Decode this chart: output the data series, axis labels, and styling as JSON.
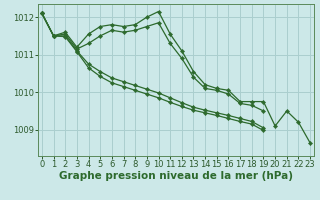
{
  "bg_color": "#cce8e8",
  "grid_color": "#aacece",
  "line_color": "#2d6a2d",
  "xlabel": "Graphe pression niveau de la mer (hPa)",
  "xlabel_fontsize": 7.5,
  "tick_fontsize": 6,
  "ylim": [
    1008.3,
    1012.35
  ],
  "xlim": [
    -0.3,
    23.3
  ],
  "yticks": [
    1009,
    1010,
    1011,
    1012
  ],
  "xticks": [
    0,
    1,
    2,
    3,
    4,
    5,
    6,
    7,
    8,
    9,
    10,
    11,
    12,
    13,
    14,
    15,
    16,
    17,
    18,
    19,
    20,
    21,
    22,
    23
  ],
  "series": [
    {
      "x": [
        0,
        1,
        2,
        3,
        4,
        5,
        6,
        7,
        8,
        9,
        10,
        11,
        12,
        13,
        14,
        15,
        16,
        17,
        18,
        19,
        20,
        21,
        22,
        23
      ],
      "y": [
        1012.1,
        1011.5,
        1011.6,
        1011.2,
        1011.55,
        1011.75,
        1011.8,
        1011.75,
        1011.8,
        1012.0,
        1012.15,
        1011.55,
        1011.1,
        1010.55,
        1010.2,
        1010.1,
        1010.05,
        1009.75,
        1009.75,
        1009.75,
        1009.1,
        1009.5,
        1009.2,
        1008.65
      ]
    },
    {
      "x": [
        0,
        1,
        2,
        3,
        4,
        5,
        6,
        7,
        8,
        9,
        10,
        11,
        12,
        13,
        14,
        15,
        16,
        17,
        18,
        19
      ],
      "y": [
        1012.1,
        1011.5,
        1011.55,
        1011.15,
        1011.3,
        1011.5,
        1011.65,
        1011.6,
        1011.65,
        1011.75,
        1011.85,
        1011.3,
        1010.9,
        1010.4,
        1010.1,
        1010.05,
        1009.95,
        1009.7,
        1009.65,
        1009.5
      ]
    },
    {
      "x": [
        0,
        1,
        2,
        3,
        4,
        5,
        6,
        7,
        8,
        9,
        10,
        11,
        12,
        13,
        14,
        15,
        16,
        17,
        18,
        19
      ],
      "y": [
        1012.1,
        1011.5,
        1011.5,
        1011.1,
        1010.75,
        1010.55,
        1010.38,
        1010.28,
        1010.18,
        1010.08,
        1009.98,
        1009.85,
        1009.72,
        1009.6,
        1009.52,
        1009.45,
        1009.38,
        1009.3,
        1009.22,
        1009.05
      ]
    },
    {
      "x": [
        0,
        1,
        2,
        3,
        4,
        5,
        6,
        7,
        8,
        9,
        10,
        11,
        12,
        13,
        14,
        15,
        16,
        17,
        18,
        19
      ],
      "y": [
        1012.1,
        1011.5,
        1011.48,
        1011.08,
        1010.65,
        1010.42,
        1010.25,
        1010.15,
        1010.05,
        1009.95,
        1009.85,
        1009.73,
        1009.62,
        1009.52,
        1009.45,
        1009.38,
        1009.3,
        1009.22,
        1009.15,
        1008.98
      ]
    }
  ]
}
